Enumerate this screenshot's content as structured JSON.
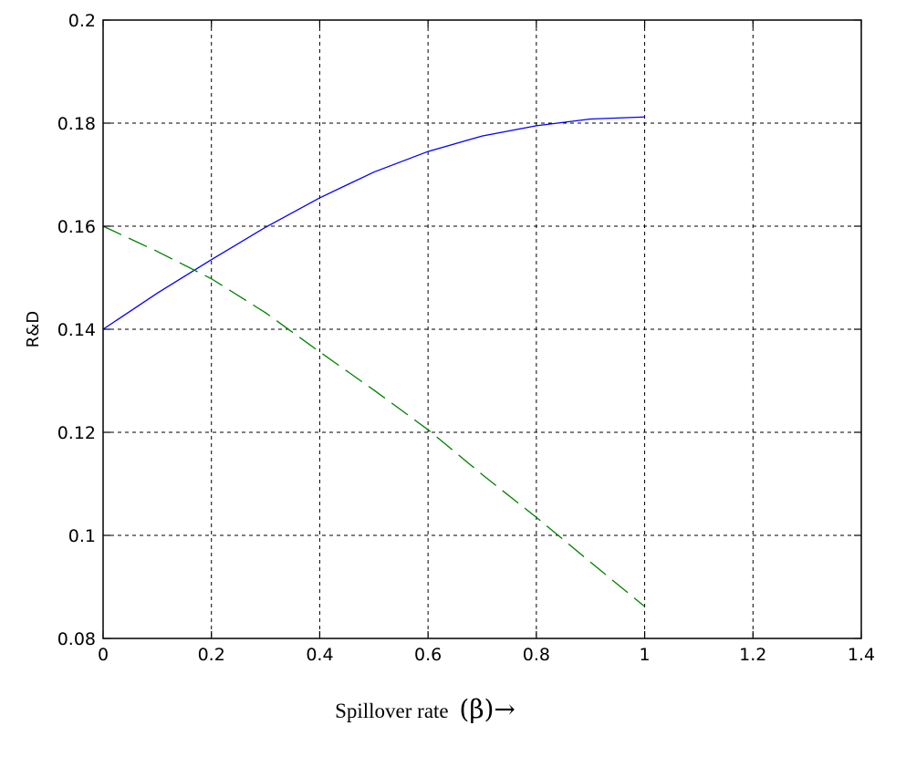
{
  "chart_data": {
    "type": "line",
    "title": "",
    "xlabel": "Spillover rate",
    "xlabel_symbol": "(β)→",
    "ylabel": "R&D",
    "xlim": [
      0,
      1.4
    ],
    "ylim": [
      0.08,
      0.2
    ],
    "grid": true,
    "x_ticks": [
      0,
      0.2,
      0.4,
      0.6,
      0.8,
      1,
      1.2,
      1.4
    ],
    "x_tick_labels": [
      "0",
      "0.2",
      "0.4",
      "0.6",
      "0.8",
      "1",
      "1.2",
      "1.4"
    ],
    "y_ticks": [
      0.08,
      0.1,
      0.12,
      0.14,
      0.16,
      0.18,
      0.2
    ],
    "y_tick_labels": [
      "0.08",
      "0.1",
      "0.12",
      "0.14",
      "0.16",
      "0.18",
      "0.2"
    ],
    "series": [
      {
        "style": "solid",
        "color": "#0000ff",
        "x": [
          0,
          0.1,
          0.2,
          0.3,
          0.4,
          0.5,
          0.6,
          0.7,
          0.8,
          0.9,
          1.0
        ],
        "y": [
          0.14,
          0.147,
          0.1535,
          0.1598,
          0.1655,
          0.1705,
          0.1745,
          0.1775,
          0.1795,
          0.1808,
          0.1812
        ]
      },
      {
        "style": "dashed",
        "color": "#008000",
        "x": [
          0,
          0.1,
          0.2,
          0.3,
          0.4,
          0.5,
          0.6,
          0.7,
          0.8,
          0.9,
          1.0
        ],
        "y": [
          0.16,
          0.1551,
          0.1498,
          0.1432,
          0.1356,
          0.1282,
          0.1205,
          0.1118,
          0.1035,
          0.0948,
          0.0862
        ]
      }
    ]
  }
}
